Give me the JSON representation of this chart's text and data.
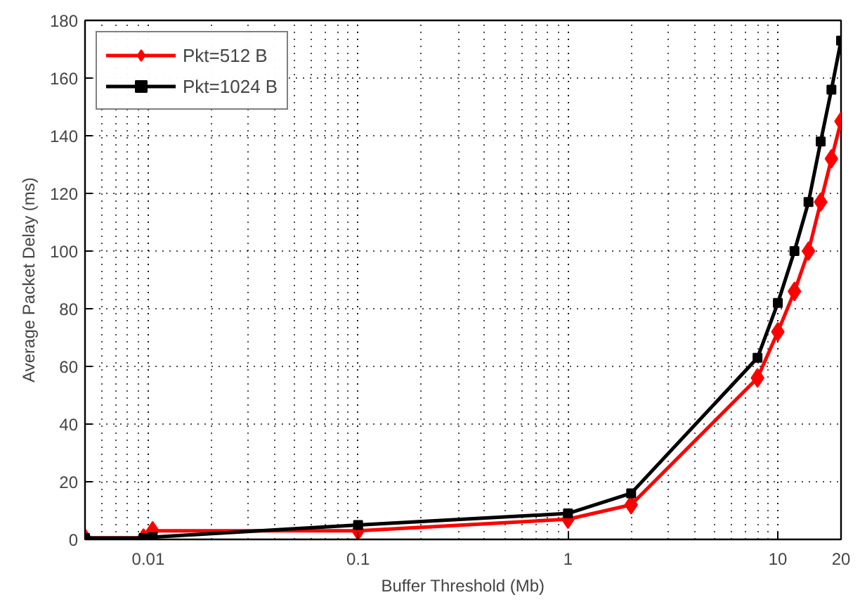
{
  "chart_data": {
    "type": "line",
    "xlabel": "Buffer Threshold (Mb)",
    "ylabel": "Average Packet Delay (ms)",
    "x": [
      0.005,
      0.0095,
      0.0105,
      0.1,
      1,
      2,
      8,
      10,
      12,
      14,
      16,
      18,
      20
    ],
    "series": [
      {
        "name": "Pkt=512 B",
        "color": "#ff0000",
        "marker": "diamond",
        "values": [
          0.5,
          0.5,
          3,
          3,
          7,
          12,
          56,
          72,
          86,
          100,
          117,
          132,
          145
        ]
      },
      {
        "name": "Pkt=1024 B",
        "color": "#000000",
        "marker": "square",
        "values": [
          0.5,
          0.5,
          0.8,
          5,
          9,
          16,
          63,
          82,
          100,
          117,
          138,
          156,
          173
        ]
      }
    ],
    "log": "x",
    "xlim": [
      0.005,
      20
    ],
    "xticks": [
      0.01,
      0.1,
      1,
      10,
      20
    ],
    "ylim": [
      0,
      180
    ],
    "yticks": [
      0,
      20,
      40,
      60,
      80,
      100,
      120,
      140,
      160,
      180
    ],
    "grid": true,
    "legend": "top left",
    "line_style": "solid"
  }
}
